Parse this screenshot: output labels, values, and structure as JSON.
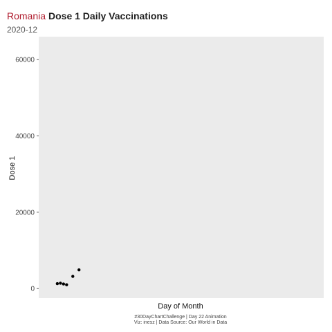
{
  "chart_data": {
    "type": "scatter",
    "title_country": "Romania",
    "title": "Dose 1 Daily Vaccinations",
    "subtitle": "2020-12",
    "xlabel": "Day of Month",
    "ylabel": "Dose 1",
    "xlim": [
      26.7,
      31.3
    ],
    "ylim": [
      -2500,
      66000
    ],
    "yticks": [
      0,
      20000,
      40000,
      60000
    ],
    "ytick_labels": [
      "0",
      "20000",
      "40000",
      "60000"
    ],
    "grid": false,
    "points": [
      {
        "x": 27,
        "y": 1300
      },
      {
        "x": 27.05,
        "y": 1400
      },
      {
        "x": 27.1,
        "y": 1200
      },
      {
        "x": 27.15,
        "y": 1000
      },
      {
        "x": 27.25,
        "y": 3200
      },
      {
        "x": 27.35,
        "y": 4900
      }
    ],
    "caption_lines": [
      "#30DayChartChallenge | Day 22 Animation",
      "Viz: inesz | Data Source: Our World in Data"
    ],
    "colors": {
      "panel": "#ebebeb",
      "point": "#000000",
      "country": "#b01c2e"
    }
  }
}
